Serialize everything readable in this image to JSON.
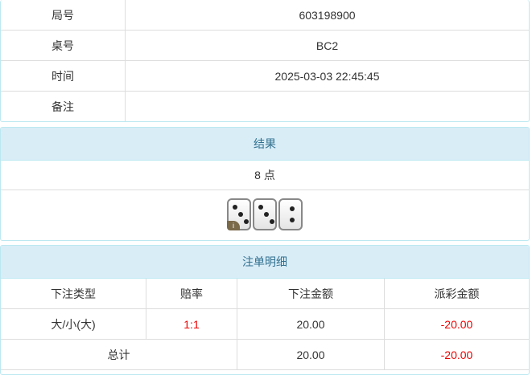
{
  "info": {
    "rows": [
      {
        "label": "局号",
        "value": "603198900"
      },
      {
        "label": "桌号",
        "value": "BC2"
      },
      {
        "label": "时间",
        "value": "2025-03-03 22:45:45"
      },
      {
        "label": "备注",
        "value": ""
      }
    ]
  },
  "result": {
    "title": "结果",
    "points": "8 点",
    "dice": [
      3,
      3,
      2
    ],
    "info_badge": "i"
  },
  "bets": {
    "title": "注单明细",
    "headers": [
      "下注类型",
      "赔率",
      "下注金额",
      "派彩金额"
    ],
    "rows": [
      {
        "type": "大/小(大)",
        "odds": "1:1",
        "amount": "20.00",
        "payout": "-20.00"
      }
    ],
    "total": {
      "label": "总计",
      "amount": "20.00",
      "payout": "-20.00"
    },
    "colors": {
      "negative": "#ee0000"
    }
  }
}
